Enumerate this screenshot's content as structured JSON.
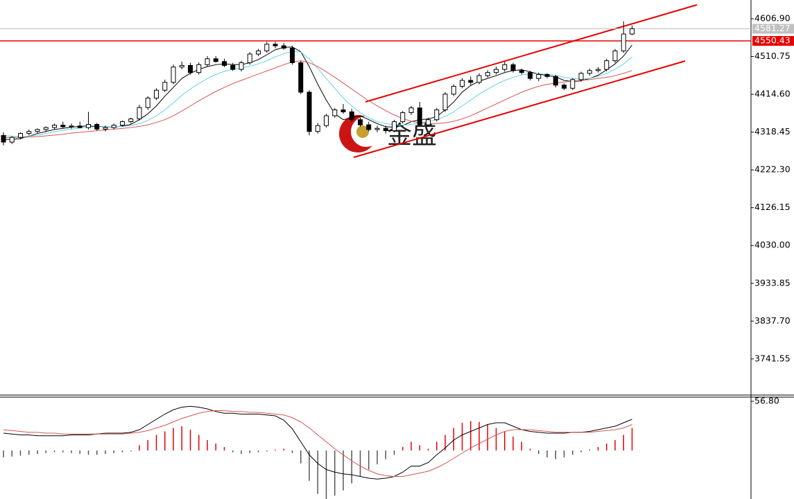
{
  "chart_data": [
    {
      "type": "candlestick",
      "watermark": "金盛",
      "ylim": [
        3649.6,
        4654.5
      ],
      "yticks": [
        {
          "value": 4606.9,
          "label": "4606.90"
        },
        4510.75,
        {
          "value": 4414.6,
          "label": "4414.60"
        },
        4318.45,
        {
          "value": 4222.3,
          "label": "4222.30"
        },
        4126.15,
        {
          "value": 4030,
          "label": "4030.00"
        },
        3933.85,
        {
          "value": 3837.7,
          "label": "3837.70"
        },
        3741.55
      ],
      "up_color": "#ffffff",
      "down_color": "#000000",
      "open": [
        4310,
        4293,
        4305,
        4315,
        4320,
        4325,
        4330,
        4336,
        4332,
        4334,
        4330,
        4338,
        4326,
        4330,
        4336,
        4345,
        4352,
        4381,
        4405,
        4425,
        4445,
        4484,
        4488,
        4470,
        4490,
        4505,
        4498,
        4488,
        4478,
        4495,
        4517,
        4525,
        4542,
        4538,
        4532,
        4495,
        4420,
        4320,
        4335,
        4360,
        4375,
        4370,
        4350,
        4337,
        4325,
        4328,
        4322,
        4345,
        4368,
        4380,
        4337,
        4350,
        4375,
        4415,
        4435,
        4450,
        4445,
        4462,
        4470,
        4478,
        4490,
        4475,
        4470,
        4455,
        4465,
        4460,
        4438,
        4430,
        4452,
        4468,
        4475,
        4478,
        4500,
        4525,
        4568
      ],
      "high": [
        4318,
        4308,
        4318,
        4325,
        4328,
        4333,
        4340,
        4345,
        4340,
        4345,
        4370,
        4342,
        4335,
        4340,
        4348,
        4355,
        4388,
        4410,
        4430,
        4452,
        4490,
        4498,
        4495,
        4496,
        4512,
        4512,
        4505,
        4495,
        4500,
        4522,
        4530,
        4548,
        4548,
        4545,
        4538,
        4500,
        4425,
        4342,
        4365,
        4380,
        4390,
        4378,
        4355,
        4345,
        4335,
        4335,
        4350,
        4372,
        4385,
        4395,
        4355,
        4380,
        4420,
        4440,
        4456,
        4460,
        4468,
        4476,
        4485,
        4498,
        4495,
        4480,
        4474,
        4470,
        4468,
        4464,
        4442,
        4456,
        4472,
        4480,
        4484,
        4505,
        4530,
        4600,
        4590
      ],
      "low": [
        4285,
        4288,
        4300,
        4310,
        4316,
        4320,
        4326,
        4328,
        4327,
        4328,
        4325,
        4322,
        4320,
        4326,
        4332,
        4340,
        4348,
        4375,
        4400,
        4420,
        4440,
        4478,
        4465,
        4465,
        4485,
        4495,
        4484,
        4474,
        4473,
        4490,
        4512,
        4520,
        4532,
        4528,
        4490,
        4415,
        4310,
        4315,
        4330,
        4355,
        4365,
        4345,
        4332,
        4320,
        4318,
        4315,
        4318,
        4340,
        4362,
        4332,
        4332,
        4345,
        4370,
        4410,
        4430,
        4438,
        4440,
        4457,
        4465,
        4472,
        4470,
        4465,
        4450,
        4448,
        4455,
        4432,
        4425,
        4425,
        4447,
        4462,
        4470,
        4473,
        4495,
        4520,
        4565
      ],
      "close": [
        4293,
        4305,
        4315,
        4320,
        4325,
        4330,
        4336,
        4332,
        4334,
        4330,
        4338,
        4326,
        4330,
        4336,
        4345,
        4352,
        4381,
        4405,
        4425,
        4445,
        4484,
        4488,
        4470,
        4490,
        4505,
        4498,
        4488,
        4478,
        4495,
        4517,
        4525,
        4542,
        4538,
        4532,
        4495,
        4420,
        4320,
        4335,
        4360,
        4375,
        4370,
        4350,
        4337,
        4325,
        4328,
        4322,
        4345,
        4368,
        4380,
        4337,
        4350,
        4375,
        4415,
        4435,
        4450,
        4445,
        4462,
        4470,
        4478,
        4490,
        4475,
        4470,
        4455,
        4465,
        4460,
        4438,
        4430,
        4452,
        4468,
        4475,
        4478,
        4500,
        4525,
        4568,
        4581.27
      ],
      "lines": [
        {
          "color": "#000000",
          "values": [
            4300,
            4300,
            4302,
            4308,
            4315,
            4320,
            4325,
            4328,
            4331,
            4333,
            4334,
            4333,
            4332,
            4331,
            4334,
            4338,
            4350,
            4365,
            4385,
            4410,
            4432,
            4455,
            4468,
            4478,
            4485,
            4490,
            4492,
            4490,
            4490,
            4495,
            4503,
            4515,
            4528,
            4534,
            4535,
            4523,
            4485,
            4440,
            4400,
            4365,
            4350,
            4355,
            4360,
            4350,
            4340,
            4332,
            4331,
            4335,
            4345,
            4350,
            4352,
            4358,
            4375,
            4395,
            4420,
            4437,
            4448,
            4455,
            4462,
            4470,
            4475,
            4477,
            4472,
            4466,
            4462,
            4459,
            4450,
            4447,
            4449,
            4455,
            4463,
            4477,
            4492,
            4512,
            4540
          ]
        },
        {
          "color": "#5fd3e8",
          "values": [
            4310,
            4308,
            4307,
            4308,
            4311,
            4315,
            4319,
            4323,
            4326,
            4329,
            4331,
            4332,
            4332,
            4332,
            4333,
            4335,
            4340,
            4348,
            4360,
            4375,
            4393,
            4412,
            4428,
            4442,
            4455,
            4465,
            4473,
            4478,
            4482,
            4486,
            4492,
            4500,
            4510,
            4518,
            4524,
            4522,
            4505,
            4480,
            4455,
            4430,
            4405,
            4385,
            4368,
            4355,
            4345,
            4340,
            4337,
            4336,
            4338,
            4342,
            4345,
            4350,
            4358,
            4370,
            4385,
            4400,
            4415,
            4428,
            4440,
            4450,
            4458,
            4464,
            4467,
            4467,
            4466,
            4463,
            4458,
            4455,
            4453,
            4455,
            4460,
            4468,
            4478,
            4492,
            4510
          ]
        },
        {
          "color": "#d9534f",
          "values": [
            4305,
            4305,
            4305,
            4306,
            4307,
            4309,
            4311,
            4313,
            4316,
            4318,
            4320,
            4322,
            4324,
            4326,
            4328,
            4330,
            4333,
            4337,
            4343,
            4350,
            4360,
            4372,
            4385,
            4398,
            4410,
            4422,
            4432,
            4442,
            4450,
            4458,
            4466,
            4474,
            4482,
            4490,
            4497,
            4500,
            4495,
            4485,
            4472,
            4458,
            4443,
            4428,
            4413,
            4398,
            4385,
            4373,
            4362,
            4353,
            4346,
            4342,
            4340,
            4340,
            4342,
            4346,
            4352,
            4360,
            4370,
            4380,
            4390,
            4400,
            4410,
            4420,
            4428,
            4435,
            4440,
            4443,
            4446,
            4448,
            4450,
            4452,
            4455,
            4458,
            4462,
            4468,
            4475
          ]
        }
      ],
      "price_lines": [
        {
          "value": 4581.27,
          "color": "#c0c0c0"
        },
        {
          "value": 4550.43,
          "color": "#e60000"
        }
      ]
    },
    {
      "type": "macd",
      "ylim": [
        -56,
        61.6
      ],
      "yticks": [
        {
          "value": 56.8,
          "label": "56.80"
        }
      ],
      "up_color": "#e60000",
      "down_color": "#555555",
      "histogram": [
        -8,
        -7,
        -6,
        -5,
        -4,
        -3,
        -2,
        -2,
        -3,
        -4,
        -5,
        -5,
        -4,
        -3,
        -2,
        -1,
        6,
        12,
        18,
        22,
        26,
        28,
        24,
        18,
        12,
        8,
        4,
        -2,
        -4,
        -3,
        -2,
        -1,
        1,
        2,
        -3,
        -15,
        -35,
        -50,
        -56,
        -52,
        -46,
        -38,
        -30,
        -22,
        -16,
        -10,
        -5,
        4,
        10,
        6,
        2,
        10,
        18,
        26,
        32,
        34,
        33,
        30,
        26,
        22,
        16,
        10,
        2,
        -4,
        -8,
        -10,
        -8,
        -5,
        -2,
        1,
        4,
        8,
        12,
        18,
        26
      ],
      "lines": [
        {
          "color": "#000000",
          "values": [
            20,
            19,
            18,
            18,
            17,
            17,
            17,
            17,
            18,
            18,
            18,
            19,
            20,
            20,
            20,
            21,
            24,
            30,
            36,
            42,
            47,
            50,
            51,
            50,
            48,
            45,
            43,
            43,
            42,
            42,
            42,
            41,
            40,
            35,
            25,
            10,
            -5,
            -15,
            -22,
            -25,
            -27,
            -28,
            -30,
            -32,
            -33,
            -32,
            -30,
            -25,
            -18,
            -18,
            -14,
            -5,
            3,
            12,
            18,
            22,
            26,
            30,
            32,
            32,
            28,
            24,
            22,
            21,
            20,
            20,
            20,
            21,
            21,
            22,
            24,
            26,
            28,
            32,
            36
          ]
        },
        {
          "color": "#d9534f",
          "values": [
            24,
            23,
            22,
            21,
            21,
            20,
            20,
            19,
            19,
            19,
            19,
            19,
            19,
            19,
            19,
            20,
            21,
            23,
            26,
            29,
            33,
            37,
            40,
            43,
            45,
            46,
            46,
            45,
            45,
            44,
            44,
            43,
            42,
            41,
            38,
            33,
            26,
            18,
            10,
            2,
            -5,
            -12,
            -18,
            -23,
            -27,
            -29,
            -30,
            -30,
            -28,
            -26,
            -24,
            -20,
            -15,
            -9,
            -3,
            3,
            8,
            13,
            18,
            22,
            24,
            24,
            24,
            23,
            22,
            21,
            21,
            21,
            21,
            21,
            22,
            23,
            24,
            26,
            30
          ]
        }
      ]
    }
  ]
}
